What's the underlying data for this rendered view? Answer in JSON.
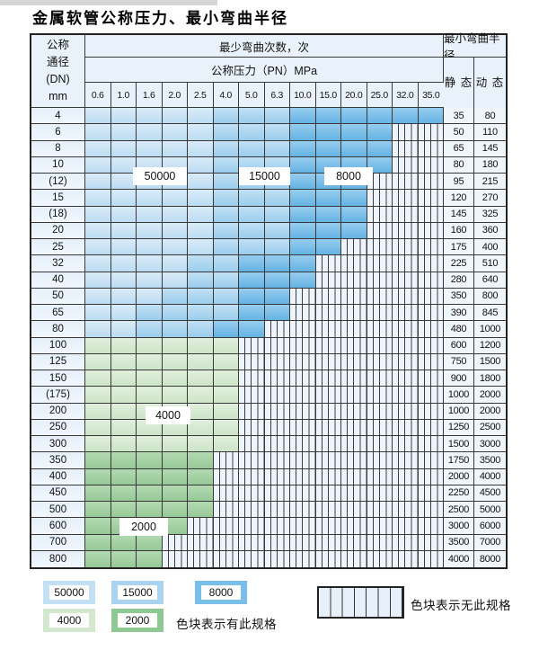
{
  "title": "金属软管公称压力、最小弯曲半径",
  "table": {
    "header": {
      "dn_lines": [
        "公称",
        "通径",
        "(DN)",
        "mm"
      ],
      "bend_cycles": "最少弯曲次数，次",
      "pressure": "公称压力（PN）MPa",
      "radius": "最小弯曲半径",
      "static_label": "静 态",
      "dynamic_label": "动 态",
      "pressure_columns": [
        "0.6",
        "1.0",
        "1.6",
        "2.0",
        "2.5",
        "4.0",
        "5.0",
        "6.3",
        "10.0",
        "15.0",
        "20.0",
        "25.0",
        "32.0",
        "35.0"
      ]
    },
    "rows": [
      {
        "dn": "4",
        "cells": [
          [
            "b1",
            5
          ],
          [
            "b2",
            3
          ],
          [
            "b3",
            6
          ]
        ],
        "static": "35",
        "dynamic": "80"
      },
      {
        "dn": "6",
        "cells": [
          [
            "b1",
            5
          ],
          [
            "b2",
            3
          ],
          [
            "b3",
            4
          ]
        ],
        "static": "50",
        "dynamic": "110"
      },
      {
        "dn": "8",
        "cells": [
          [
            "b1",
            5
          ],
          [
            "b2",
            3
          ],
          [
            "b3",
            4
          ]
        ],
        "static": "65",
        "dynamic": "145"
      },
      {
        "dn": "10",
        "cells": [
          [
            "b1",
            5
          ],
          [
            "b2",
            3
          ],
          [
            "b3",
            4
          ]
        ],
        "static": "80",
        "dynamic": "180"
      },
      {
        "dn": "(12)",
        "cells": [
          [
            "b1",
            5
          ],
          [
            "b2",
            3
          ],
          [
            "b3",
            3
          ]
        ],
        "static": "95",
        "dynamic": "215"
      },
      {
        "dn": "15",
        "cells": [
          [
            "b1",
            5
          ],
          [
            "b2",
            3
          ],
          [
            "b3",
            3
          ]
        ],
        "static": "120",
        "dynamic": "270"
      },
      {
        "dn": "(18)",
        "cells": [
          [
            "b1",
            5
          ],
          [
            "b2",
            3
          ],
          [
            "b3",
            3
          ]
        ],
        "static": "145",
        "dynamic": "325"
      },
      {
        "dn": "20",
        "cells": [
          [
            "b1",
            5
          ],
          [
            "b2",
            3
          ],
          [
            "b3",
            3
          ]
        ],
        "static": "160",
        "dynamic": "360"
      },
      {
        "dn": "25",
        "cells": [
          [
            "b1",
            5
          ],
          [
            "b2",
            3
          ],
          [
            "b3",
            2
          ]
        ],
        "static": "175",
        "dynamic": "400"
      },
      {
        "dn": "32",
        "cells": [
          [
            "b1",
            4
          ],
          [
            "b2",
            2
          ],
          [
            "b3",
            3
          ]
        ],
        "static": "225",
        "dynamic": "510"
      },
      {
        "dn": "40",
        "cells": [
          [
            "b1",
            4
          ],
          [
            "b2",
            2
          ],
          [
            "b3",
            3
          ]
        ],
        "static": "280",
        "dynamic": "640"
      },
      {
        "dn": "50",
        "cells": [
          [
            "b1",
            3
          ],
          [
            "b2",
            3
          ],
          [
            "b3",
            2
          ]
        ],
        "static": "350",
        "dynamic": "800"
      },
      {
        "dn": "65",
        "cells": [
          [
            "b1",
            2
          ],
          [
            "b2",
            4
          ],
          [
            "b3",
            2
          ]
        ],
        "static": "390",
        "dynamic": "845"
      },
      {
        "dn": "80",
        "cells": [
          [
            "b1",
            2
          ],
          [
            "b2",
            3
          ],
          [
            "b3",
            2
          ]
        ],
        "static": "480",
        "dynamic": "1000"
      },
      {
        "dn": "100",
        "cells": [
          [
            "g1",
            6
          ]
        ],
        "static": "600",
        "dynamic": "1200"
      },
      {
        "dn": "125",
        "cells": [
          [
            "g1",
            6
          ]
        ],
        "static": "750",
        "dynamic": "1500"
      },
      {
        "dn": "150",
        "cells": [
          [
            "g1",
            6
          ]
        ],
        "static": "900",
        "dynamic": "1800"
      },
      {
        "dn": "(175)",
        "cells": [
          [
            "g1",
            6
          ]
        ],
        "static": "1000",
        "dynamic": "2000"
      },
      {
        "dn": "200",
        "cells": [
          [
            "g1",
            6
          ]
        ],
        "static": "1000",
        "dynamic": "2000"
      },
      {
        "dn": "250",
        "cells": [
          [
            "g1",
            6
          ]
        ],
        "static": "1250",
        "dynamic": "2500"
      },
      {
        "dn": "300",
        "cells": [
          [
            "g1",
            6
          ]
        ],
        "static": "1500",
        "dynamic": "3000"
      },
      {
        "dn": "350",
        "cells": [
          [
            "g2",
            5
          ]
        ],
        "static": "1750",
        "dynamic": "3500"
      },
      {
        "dn": "400",
        "cells": [
          [
            "g2",
            5
          ]
        ],
        "static": "2000",
        "dynamic": "4000"
      },
      {
        "dn": "450",
        "cells": [
          [
            "g2",
            5
          ]
        ],
        "static": "2250",
        "dynamic": "4500"
      },
      {
        "dn": "500",
        "cells": [
          [
            "g2",
            5
          ]
        ],
        "static": "2500",
        "dynamic": "5000"
      },
      {
        "dn": "600",
        "cells": [
          [
            "g2",
            4
          ]
        ],
        "static": "3000",
        "dynamic": "6000"
      },
      {
        "dn": "700",
        "cells": [
          [
            "g2",
            3
          ]
        ],
        "static": "3500",
        "dynamic": "7000"
      },
      {
        "dn": "800",
        "cells": [
          [
            "g2",
            3
          ]
        ],
        "static": "4000",
        "dynamic": "8000"
      }
    ],
    "columns_per_row": 14
  },
  "float_labels": [
    "50000",
    "15000",
    "8000",
    "4000",
    "2000"
  ],
  "legend": {
    "chips": [
      {
        "value": "50000",
        "color": "#c3e0f4"
      },
      {
        "value": "15000",
        "color": "#a9d3ee"
      },
      {
        "value": "8000",
        "color": "#79bfe9"
      },
      {
        "value": "4000",
        "color": "#d4e8d0"
      },
      {
        "value": "2000",
        "color": "#8fc893"
      }
    ],
    "has_spec_text": "色块表示有此规格",
    "no_spec_text": "色块表示无此规格"
  },
  "colors": {
    "blue_50000": "#c3e0f4",
    "blue_15000": "#a9d3ee",
    "blue_8000": "#79bfe9",
    "green_4000": "#d4e8d0",
    "green_2000": "#8fc893",
    "no_spec_bg": "#eef4fb",
    "grid_line": "#383838",
    "header_bg": "#e9f2fa"
  }
}
